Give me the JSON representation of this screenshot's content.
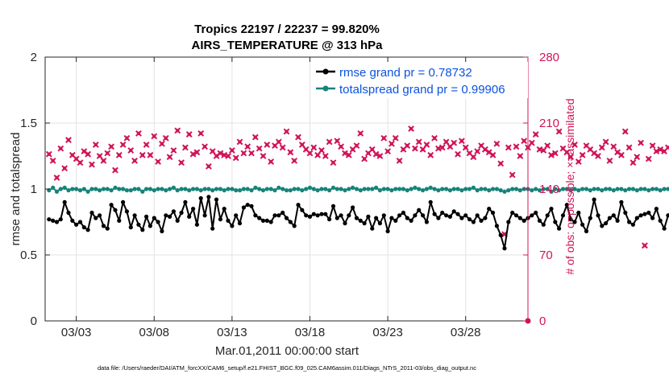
{
  "chart_data": {
    "type": "line",
    "title": "Tropics 22197 / 22237 = 99.820%",
    "subtitle": "AIRS_TEMPERATURE @ 313 hPa",
    "xlabel": "Mar.01,2011 00:00:00 start",
    "ylabel": "rmse and totalspread",
    "y2label": "# of obs: o=possible; ×=assimilated",
    "xlim": [
      1,
      32
    ],
    "xticks": [
      3,
      8,
      13,
      18,
      23,
      28
    ],
    "xtick_labels": [
      "03/03",
      "03/08",
      "03/13",
      "03/18",
      "03/23",
      "03/28"
    ],
    "ylim": [
      0,
      2
    ],
    "yticks": [
      0,
      0.5,
      1,
      1.5,
      2
    ],
    "ytick_labels": [
      "0",
      "0.5",
      "1",
      "1.5",
      "2"
    ],
    "y2lim": [
      0,
      280
    ],
    "y2ticks": [
      0,
      70,
      140,
      210,
      280
    ],
    "y2tick_labels": [
      "0",
      "70",
      "140",
      "210",
      "280"
    ],
    "grid": true,
    "legend_position": "top-right",
    "footer": "data file: /Users/raeder/DAI/ATM_forcXX/CAM6_setup/f.e21.FHIST_BGC.f09_025.CAM6assim.011/Diags_NTrS_2011-03/obs_diag_output.nc",
    "series": [
      {
        "name": "rmse grand pr = 0.78732",
        "color": "#000000",
        "axis": "left",
        "x_start": 1.25,
        "x_step": 0.25,
        "values": [
          0.77,
          0.76,
          0.75,
          0.77,
          0.9,
          0.82,
          0.76,
          0.73,
          0.75,
          0.71,
          0.69,
          0.82,
          0.78,
          0.8,
          0.72,
          0.7,
          0.88,
          0.84,
          0.76,
          0.9,
          0.83,
          0.71,
          0.8,
          0.73,
          0.69,
          0.79,
          0.72,
          0.78,
          0.75,
          0.68,
          0.8,
          0.79,
          0.83,
          0.76,
          0.82,
          0.9,
          0.79,
          0.85,
          0.73,
          0.93,
          0.8,
          0.94,
          0.7,
          0.92,
          0.77,
          0.85,
          0.76,
          0.72,
          0.8,
          0.74,
          0.86,
          0.88,
          0.87,
          0.8,
          0.78,
          0.76,
          0.76,
          0.75,
          0.8,
          0.8,
          0.82,
          0.78,
          0.75,
          0.72,
          0.88,
          0.84,
          0.8,
          0.79,
          0.81,
          0.8,
          0.81,
          0.81,
          0.77,
          0.87,
          0.78,
          0.8,
          0.74,
          0.8,
          0.86,
          0.78,
          0.76,
          0.74,
          0.79,
          0.7,
          0.78,
          0.74,
          0.8,
          0.68,
          0.78,
          0.76,
          0.8,
          0.82,
          0.78,
          0.76,
          0.8,
          0.84,
          0.8,
          0.75,
          0.9,
          0.81,
          0.78,
          0.82,
          0.8,
          0.79,
          0.83,
          0.81,
          0.78,
          0.8,
          0.77,
          0.75,
          0.8,
          0.76,
          0.78,
          0.85,
          0.82,
          0.72,
          0.65,
          0.55,
          0.75,
          0.82,
          0.8,
          0.78,
          0.76,
          0.78,
          0.8,
          0.82,
          0.76,
          0.73,
          0.8,
          0.85,
          0.75,
          0.7,
          0.8,
          0.88,
          0.77,
          0.75,
          0.82,
          0.73,
          0.68,
          0.78,
          0.92,
          0.8,
          0.72,
          0.74,
          0.78,
          0.8,
          0.76,
          0.9,
          0.82,
          0.75,
          0.73,
          0.78,
          0.8,
          0.81,
          0.82,
          0.78,
          0.85,
          0.76,
          0.7,
          0.8,
          0.84,
          0.72
        ],
        "marker": "o"
      },
      {
        "name": "totalspread grand pr = 0.99906",
        "color": "#16837a",
        "axis": "left",
        "x_start": 1.25,
        "x_step": 0.25,
        "values": [
          0.99,
          1.01,
          0.98,
          1.0,
          1.01,
          0.99,
          1.0,
          1.0,
          0.99,
          1.0,
          0.98,
          1.0,
          1.0,
          0.99,
          1.0,
          1.0,
          0.99,
          1.01,
          1.0,
          1.0,
          0.99,
          0.99,
          1.0,
          1.0,
          0.98,
          1.0,
          1.0,
          0.99,
          1.0,
          1.0,
          0.99,
          1.0,
          1.01,
          0.99,
          1.0,
          1.0,
          0.99,
          1.0,
          1.0,
          0.99,
          1.0,
          1.0,
          0.99,
          1.0,
          1.0,
          0.99,
          1.0,
          1.0,
          0.99,
          0.99,
          1.0,
          1.0,
          0.99,
          1.01,
          1.0,
          0.99,
          1.0,
          1.0,
          0.99,
          1.01,
          1.0,
          0.99,
          0.99,
          1.0,
          1.0,
          0.99,
          1.0,
          1.01,
          1.0,
          0.99,
          1.0,
          1.0,
          0.99,
          1.01,
          1.0,
          1.0,
          0.99,
          1.0,
          1.01,
          1.0,
          0.99,
          1.0,
          1.0,
          1.0,
          1.01,
          0.99,
          1.0,
          1.0,
          0.99,
          1.0,
          1.0,
          1.0,
          0.99,
          1.0,
          1.01,
          1.0,
          0.99,
          1.0,
          1.01,
          1.0,
          0.99,
          1.0,
          1.0,
          0.99,
          1.0,
          1.0,
          0.99,
          1.0,
          1.0,
          1.01,
          0.99,
          1.0,
          1.0,
          0.99,
          1.0,
          1.0,
          0.99,
          0.98,
          0.99,
          1.0,
          1.0,
          0.99,
          1.0,
          1.0,
          0.99,
          1.0,
          0.99,
          1.0,
          1.0,
          0.98,
          1.0,
          0.99,
          1.0,
          1.0,
          0.99,
          1.0,
          0.99,
          1.0,
          1.0,
          0.99,
          1.0,
          1.0,
          0.99,
          1.0,
          1.0,
          0.99,
          1.0,
          1.0,
          0.99,
          1.0,
          1.0,
          0.99,
          1.0,
          1.0,
          0.99,
          1.0,
          1.0,
          0.99,
          1.0,
          1.0,
          0.99,
          0.99
        ],
        "marker": "o"
      },
      {
        "name": "# of obs",
        "color": "#d01558",
        "axis": "right",
        "x_start": 1.25,
        "x_step": 0.25,
        "values": [
          177,
          170,
          152,
          183,
          162,
          192,
          176,
          172,
          168,
          180,
          177,
          166,
          187,
          175,
          170,
          178,
          185,
          160,
          176,
          187,
          194,
          181,
          170,
          199,
          176,
          187,
          176,
          196,
          169,
          188,
          194,
          174,
          181,
          202,
          168,
          184,
          198,
          177,
          179,
          199,
          185,
          164,
          180,
          175,
          178,
          176,
          175,
          181,
          173,
          190,
          178,
          185,
          178,
          195,
          183,
          175,
          187,
          169,
          186,
          190,
          184,
          201,
          179,
          170,
          195,
          187,
          182,
          178,
          184,
          176,
          181,
          175,
          190,
          168,
          191,
          185,
          178,
          176,
          182,
          186,
          199,
          172,
          178,
          182,
          177,
          175,
          194,
          180,
          188,
          194,
          170,
          182,
          186,
          204,
          183,
          190,
          182,
          187,
          176,
          194,
          183,
          184,
          190,
          185,
          189,
          177,
          191,
          184,
          178,
          174,
          180,
          186,
          182,
          179,
          176,
          188,
          167,
          92,
          184,
          155,
          185,
          175,
          191,
          184,
          189,
          198,
          182,
          181,
          186,
          176,
          178,
          201,
          183,
          179,
          174,
          187,
          169,
          176,
          186,
          182,
          178,
          175,
          184,
          190,
          170,
          185,
          179,
          176,
          201,
          184,
          168,
          174,
          189,
          80,
          172,
          186,
          180,
          182,
          180,
          184,
          186,
          188
        ],
        "marker": "x"
      }
    ]
  }
}
